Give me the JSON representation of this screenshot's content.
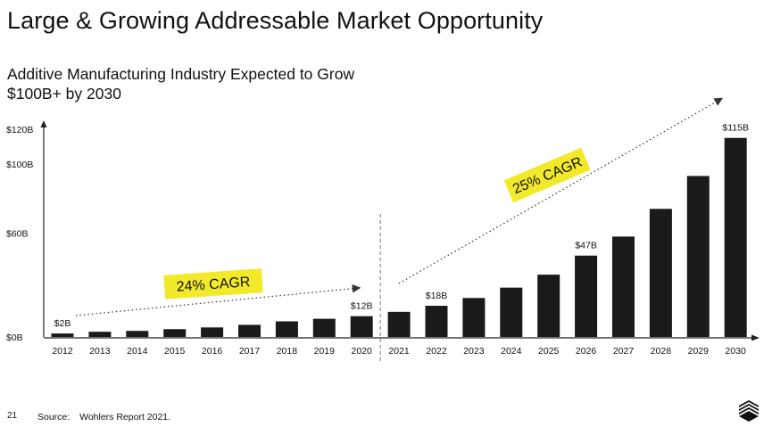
{
  "page": {
    "title": "Large & Growing Addressable Market Opportunity",
    "subtitle_line1": "Additive Manufacturing Industry Expected to Grow",
    "subtitle_line2": "$100B+ by 2030",
    "page_number": "21",
    "source_label": "Source:",
    "source_text": "Wohlers Report 2021."
  },
  "colors": {
    "bar": "#1a1a1a",
    "highlight": "#f2e92b",
    "text": "#111111"
  },
  "icons": {
    "logo": "company-logo-icon"
  },
  "chart_data": {
    "type": "bar",
    "categories": [
      "2012",
      "2013",
      "2014",
      "2015",
      "2016",
      "2017",
      "2018",
      "2019",
      "2020",
      "2021",
      "2022",
      "2023",
      "2024",
      "2025",
      "2026",
      "2027",
      "2028",
      "2029",
      "2030"
    ],
    "values": [
      2,
      3,
      3.5,
      4.5,
      5.5,
      7,
      9,
      10.5,
      12,
      14.5,
      18,
      22.5,
      28.5,
      36,
      47,
      58,
      74,
      93,
      115
    ],
    "ylim": [
      0,
      120
    ],
    "yticks": [
      0,
      60,
      100,
      120
    ],
    "ytick_labels": [
      "$0B",
      "$60B",
      "$100B",
      "$120B"
    ],
    "data_labels": [
      {
        "category": "2012",
        "text": "$2B"
      },
      {
        "category": "2020",
        "text": "$12B"
      },
      {
        "category": "2022",
        "text": "$18B"
      },
      {
        "category": "2026",
        "text": "$47B"
      },
      {
        "category": "2030",
        "text": "$115B"
      }
    ],
    "annotations": [
      {
        "text": "24% CAGR",
        "from": "2012",
        "to": "2020"
      },
      {
        "text": "25% CAGR",
        "from": "2021",
        "to": "2030"
      }
    ],
    "divider_between": [
      "2020",
      "2021"
    ],
    "grid": false,
    "xlabel": "",
    "ylabel": ""
  }
}
